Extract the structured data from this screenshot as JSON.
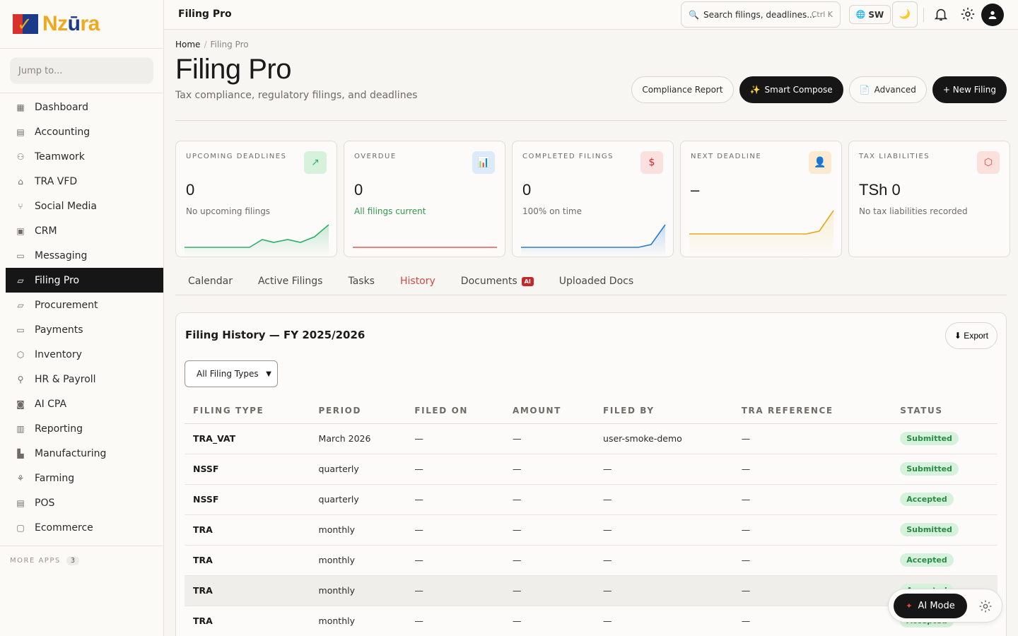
{
  "brand": {
    "logo_text_a": "Nz",
    "logo_text_u": "ū",
    "logo_text_b": "ra"
  },
  "sidebar": {
    "jump_placeholder": "Jump to...",
    "items": [
      {
        "label": "Dashboard",
        "icon": "grid-icon"
      },
      {
        "label": "Accounting",
        "icon": "ledger-icon"
      },
      {
        "label": "Teamwork",
        "icon": "people-icon"
      },
      {
        "label": "TRA VFD",
        "icon": "bank-icon"
      },
      {
        "label": "Social Media",
        "icon": "share-icon"
      },
      {
        "label": "CRM",
        "icon": "contact-icon"
      },
      {
        "label": "Messaging",
        "icon": "message-icon"
      },
      {
        "label": "Filing Pro",
        "icon": "folder-icon"
      },
      {
        "label": "Procurement",
        "icon": "folder-open-icon"
      },
      {
        "label": "Payments",
        "icon": "card-icon"
      },
      {
        "label": "Inventory",
        "icon": "box-icon"
      },
      {
        "label": "HR & Payroll",
        "icon": "user-plus-icon"
      },
      {
        "label": "AI CPA",
        "icon": "robot-icon"
      },
      {
        "label": "Reporting",
        "icon": "bar-chart-icon"
      },
      {
        "label": "Manufacturing",
        "icon": "factory-icon"
      },
      {
        "label": "Farming",
        "icon": "sprout-icon"
      },
      {
        "label": "POS",
        "icon": "receipt-icon"
      },
      {
        "label": "Ecommerce",
        "icon": "bag-icon"
      }
    ],
    "active_index": 7,
    "more_label": "MORE APPS",
    "more_count": "3"
  },
  "topbar": {
    "title": "Filing Pro",
    "search_placeholder": "Search filings, deadlines...",
    "search_kbd": "Ctrl K",
    "lang": "SW"
  },
  "page": {
    "breadcrumb_home": "Home",
    "breadcrumb_sep": "/",
    "breadcrumb_current": "Filing Pro",
    "title": "Filing Pro",
    "subtitle": "Tax compliance, regulatory filings, and deadlines",
    "actions": {
      "compliance": "Compliance Report",
      "compose": "Smart Compose",
      "advanced": "Advanced",
      "new_filing": "+ New Filing"
    }
  },
  "cards": [
    {
      "label": "UPCOMING DEADLINES",
      "value": "0",
      "note": "No upcoming filings",
      "color": "#2fae6a"
    },
    {
      "label": "OVERDUE",
      "value": "0",
      "note": "All filings current",
      "color": "#2a7ad3"
    },
    {
      "label": "COMPLETED FILINGS",
      "value": "0",
      "note": "100% on time",
      "color": "#c62828"
    },
    {
      "label": "NEXT DEADLINE",
      "value": "–",
      "note": "",
      "color": "#e6a914"
    },
    {
      "label": "TAX LIABILITIES",
      "value": "TSh 0",
      "note": "No tax liabilities recorded",
      "color": "#d7483f"
    }
  ],
  "tabs": [
    {
      "label": "Calendar"
    },
    {
      "label": "Active Filings"
    },
    {
      "label": "Tasks"
    },
    {
      "label": "History"
    },
    {
      "label": "Documents",
      "badge": "AI"
    },
    {
      "label": "Uploaded Docs"
    }
  ],
  "history": {
    "title": "Filing History — FY 2025/2026",
    "export_label": "⬇ Export",
    "filter_value": "All Filing Types",
    "columns": [
      "FILING TYPE",
      "PERIOD",
      "FILED ON",
      "AMOUNT",
      "FILED BY",
      "TRA REFERENCE",
      "STATUS"
    ],
    "rows": [
      {
        "type": "TRA_VAT",
        "period": "March 2026",
        "filed_on": "—",
        "amount": "—",
        "filed_by": "user-smoke-demo",
        "ref": "—",
        "status": "Submitted"
      },
      {
        "type": "NSSF",
        "period": "quarterly",
        "filed_on": "—",
        "amount": "—",
        "filed_by": "—",
        "ref": "—",
        "status": "Submitted"
      },
      {
        "type": "NSSF",
        "period": "quarterly",
        "filed_on": "—",
        "amount": "—",
        "filed_by": "—",
        "ref": "—",
        "status": "Accepted"
      },
      {
        "type": "TRA",
        "period": "monthly",
        "filed_on": "—",
        "amount": "—",
        "filed_by": "—",
        "ref": "—",
        "status": "Submitted"
      },
      {
        "type": "TRA",
        "period": "monthly",
        "filed_on": "—",
        "amount": "—",
        "filed_by": "—",
        "ref": "—",
        "status": "Accepted"
      },
      {
        "type": "TRA",
        "period": "monthly",
        "filed_on": "—",
        "amount": "—",
        "filed_by": "—",
        "ref": "—",
        "status": "Accepted"
      },
      {
        "type": "TRA",
        "period": "monthly",
        "filed_on": "—",
        "amount": "—",
        "filed_by": "—",
        "ref": "—",
        "status": "Accepted"
      }
    ]
  },
  "ai_mode": {
    "label": "AI Mode"
  }
}
